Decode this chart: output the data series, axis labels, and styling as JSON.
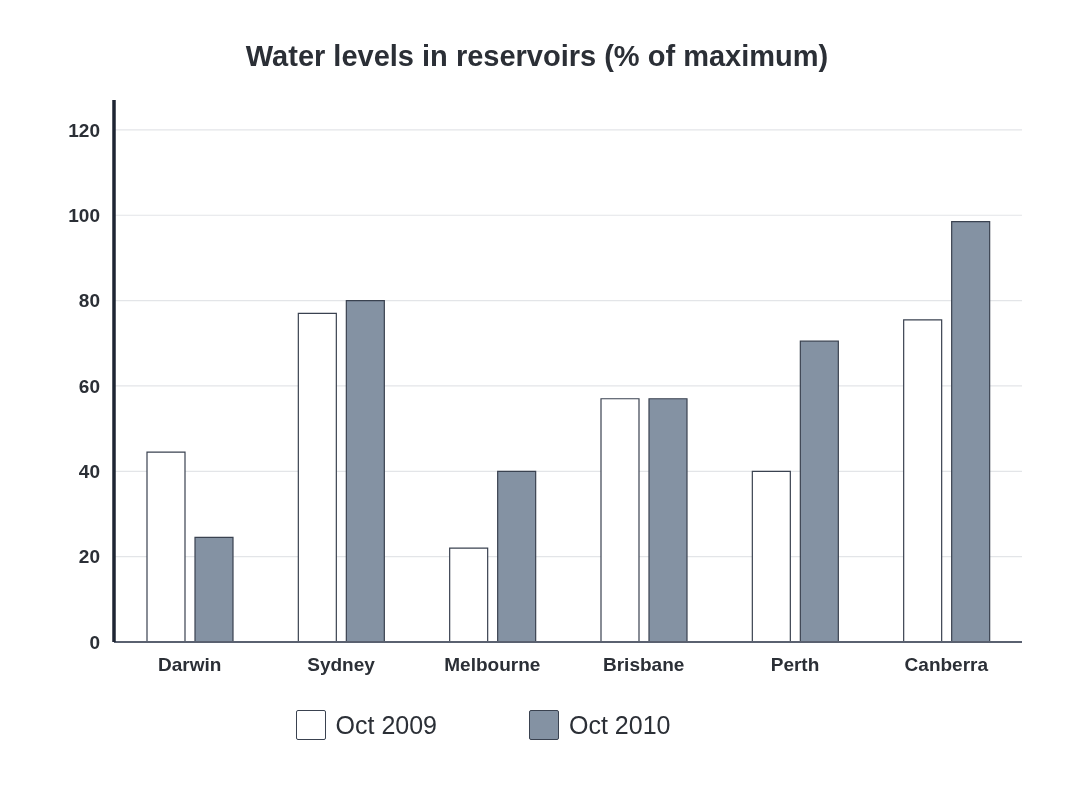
{
  "chart_data": {
    "type": "bar",
    "title": "Water levels in reservoirs (% of maximum)",
    "categories": [
      "Darwin",
      "Sydney",
      "Melbourne",
      "Brisbane",
      "Perth",
      "Canberra"
    ],
    "series": [
      {
        "name": "Oct 2009",
        "color": "#ffffff",
        "values": [
          44.5,
          77,
          22,
          57,
          40,
          75.5
        ]
      },
      {
        "name": "Oct 2010",
        "color": "#8492a3",
        "values": [
          24.5,
          80,
          40,
          57,
          70.5,
          98.5
        ]
      }
    ],
    "ylim": [
      0,
      127
    ],
    "yticks": [
      0,
      20,
      40,
      60,
      80,
      100,
      120
    ],
    "grid": "y",
    "legend": "bottom"
  }
}
